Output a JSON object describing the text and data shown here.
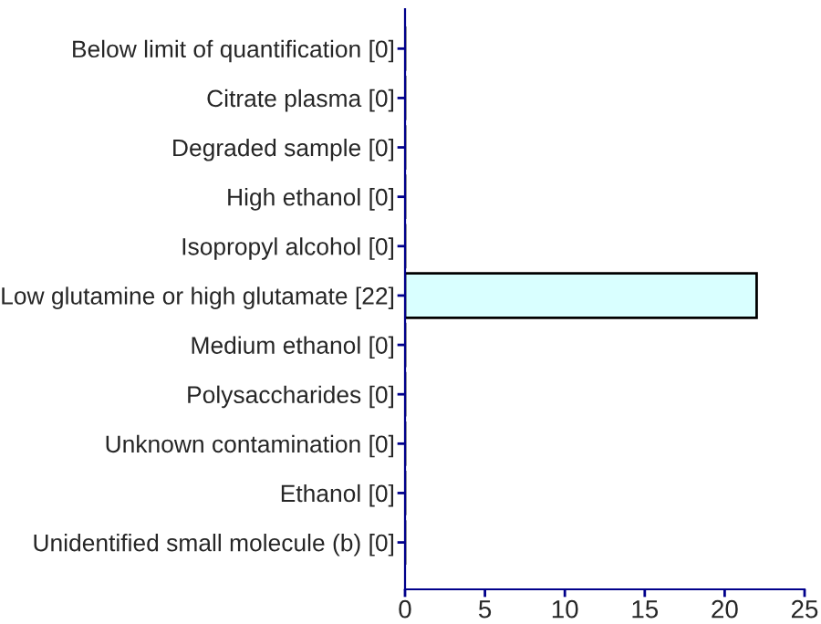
{
  "chart_data": {
    "type": "bar",
    "orientation": "horizontal",
    "categories": [
      "Below limit of quantification [0]",
      "Citrate plasma [0]",
      "Degraded sample [0]",
      "High ethanol [0]",
      "Isopropyl alcohol [0]",
      "Low glutamine or high glutamate [22]",
      "Medium ethanol [0]",
      "Polysaccharides [0]",
      "Unknown contamination [0]",
      "Ethanol [0]",
      "Unidentified small molecule (b) [0]"
    ],
    "values": [
      0,
      0,
      0,
      0,
      0,
      22,
      0,
      0,
      0,
      0,
      0
    ],
    "color": "#d9ffff",
    "xlim": [
      0,
      25
    ],
    "xticks": [
      0,
      5,
      10,
      15,
      20,
      25
    ],
    "grid": false,
    "legend": false
  }
}
